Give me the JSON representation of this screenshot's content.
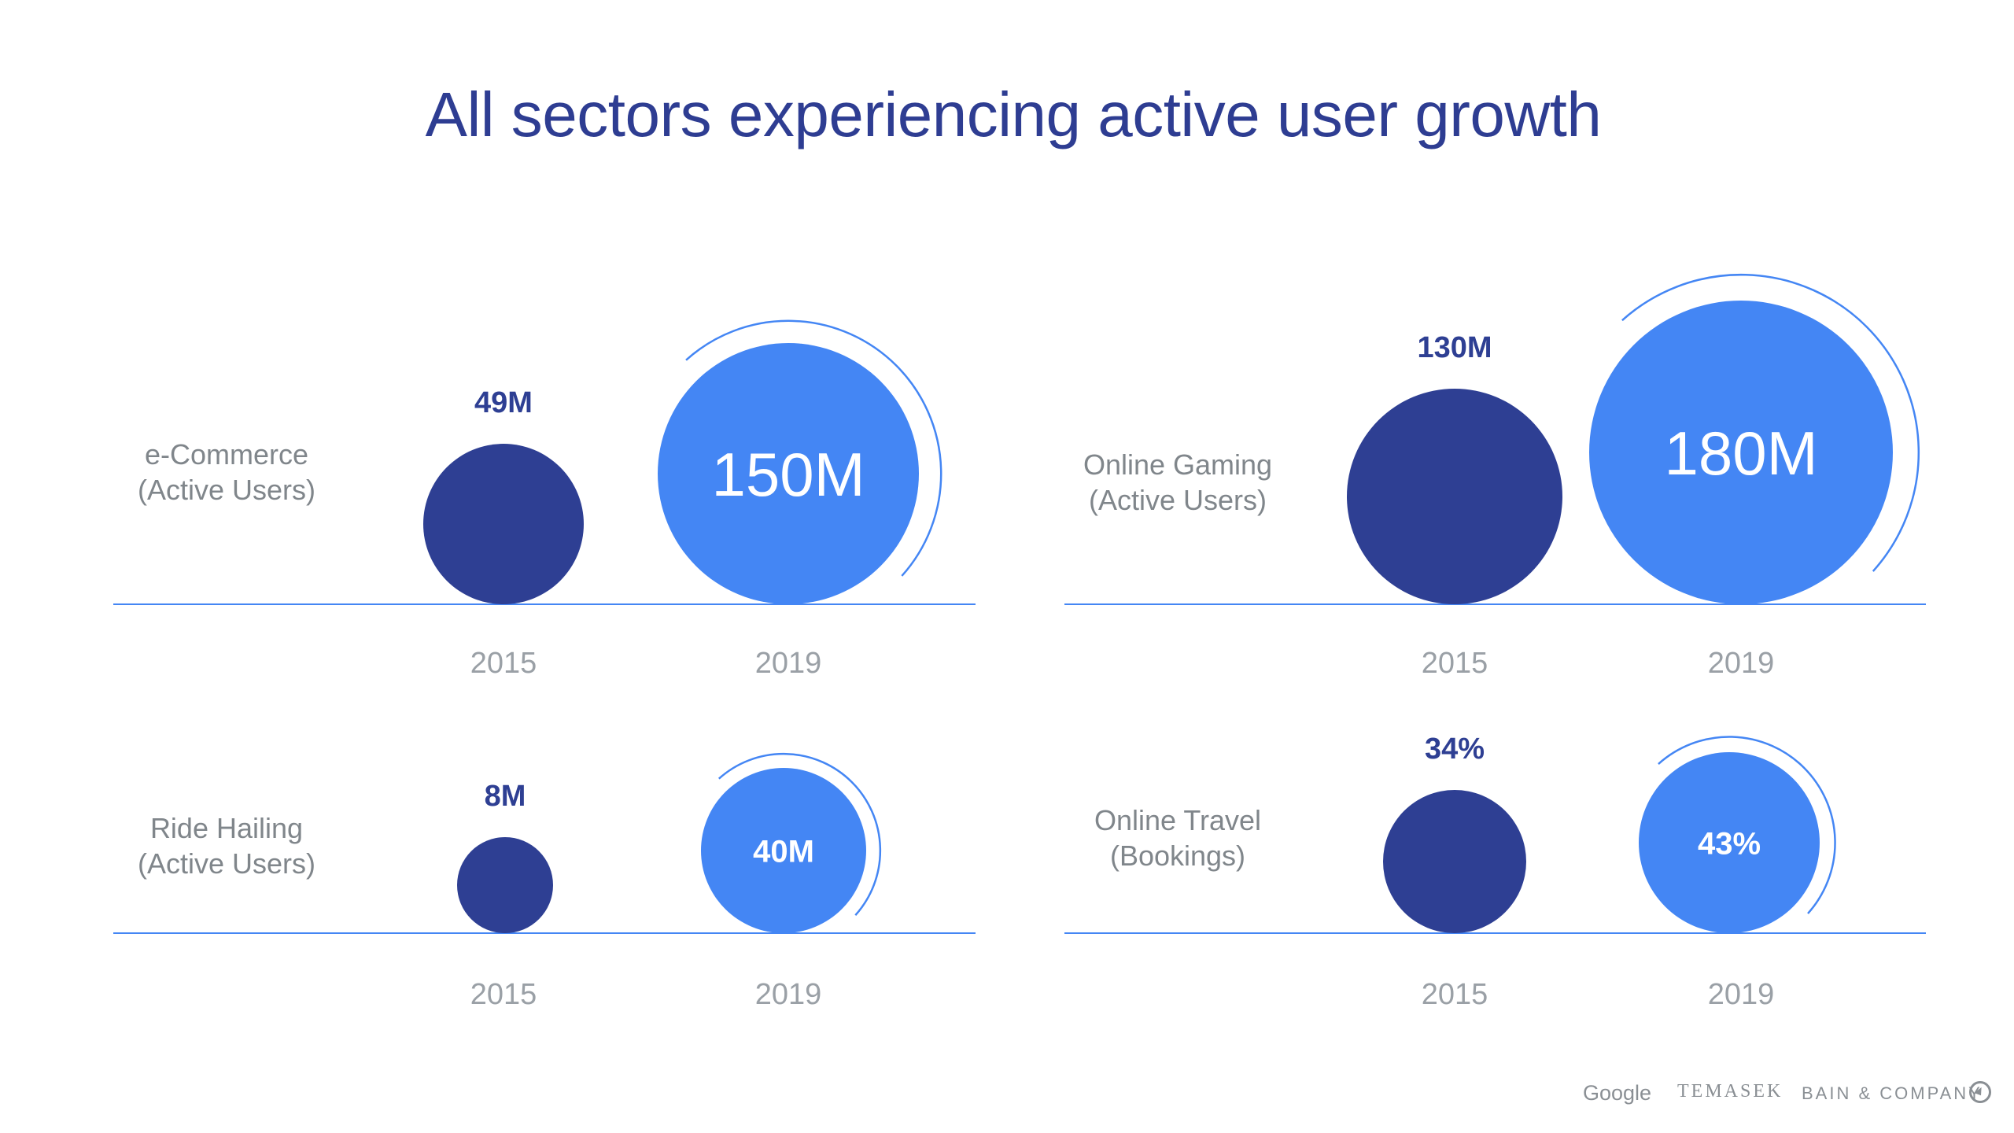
{
  "title": "All sectors experiencing active user growth",
  "colors": {
    "title": "#2E3D92",
    "circle_2015": "#2E3F93",
    "circle_2019": "#4486F4",
    "baseline": "#4486F4",
    "category_label": "#80868B",
    "year_label": "#9AA0A6"
  },
  "footer": {
    "logos": [
      "Google",
      "TEMASEK",
      "BAIN & COMPANY"
    ],
    "bain_icon": "bain-compass-icon"
  },
  "chart_data": {
    "type": "bubble",
    "title": "All sectors experiencing active user growth",
    "years": [
      "2015",
      "2019"
    ],
    "panels": [
      {
        "category": "e-Commerce",
        "subtitle": "(Active Users)",
        "values": [
          {
            "year": "2015",
            "value": 49,
            "label": "49M"
          },
          {
            "year": "2019",
            "value": 150,
            "label": "150M"
          }
        ],
        "unit": "M"
      },
      {
        "category": "Online Gaming",
        "subtitle": "(Active Users)",
        "values": [
          {
            "year": "2015",
            "value": 130,
            "label": "130M"
          },
          {
            "year": "2019",
            "value": 180,
            "label": "180M"
          }
        ],
        "unit": "M"
      },
      {
        "category": "Ride Hailing",
        "subtitle": "(Active Users)",
        "values": [
          {
            "year": "2015",
            "value": 8,
            "label": "8M"
          },
          {
            "year": "2019",
            "value": 40,
            "label": "40M"
          }
        ],
        "unit": "M"
      },
      {
        "category": "Online Travel",
        "subtitle": "(Bookings)",
        "values": [
          {
            "year": "2015",
            "value": 34,
            "label": "34%"
          },
          {
            "year": "2019",
            "value": 43,
            "label": "43%"
          }
        ],
        "unit": "%"
      }
    ]
  }
}
